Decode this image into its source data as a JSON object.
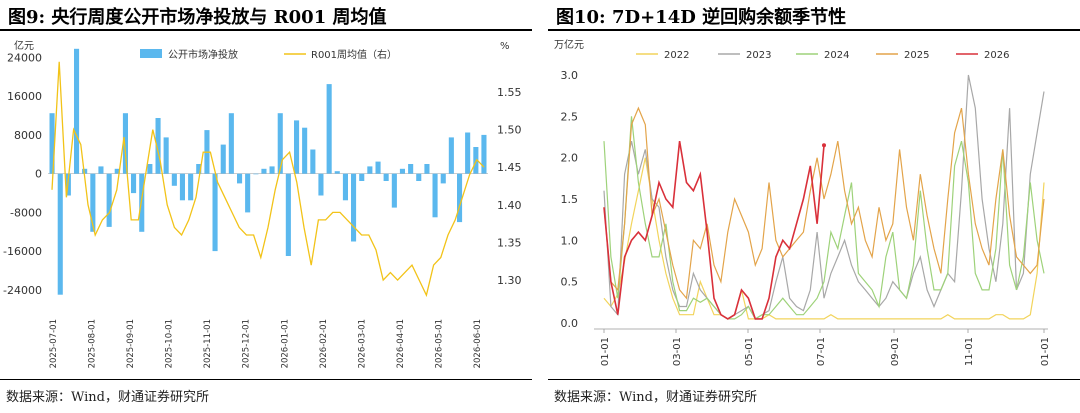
{
  "left": {
    "title": "图9: 央行周度公开市场净投放与 R001 周均值",
    "source": "数据来源：Wind，财通证券研究所",
    "chart_data": {
      "type": "bar+line",
      "y_left_unit": "亿元",
      "y_right_unit": "%",
      "y_left_ticks": [
        "24000",
        "16000",
        "8000",
        "0",
        "-8000",
        "-16000",
        "-24000"
      ],
      "y_left_range": [
        -29000,
        27000
      ],
      "y_right_ticks": [
        "1.55",
        "1.50",
        "1.45",
        "1.40",
        "1.35",
        "1.30"
      ],
      "y_right_range": [
        1.255,
        1.615
      ],
      "x_ticks": [
        "2025-07-01",
        "2025-08-01",
        "2025-09-01",
        "2025-10-01",
        "2025-11-01",
        "2025-12-01",
        "2026-01-01",
        "2026-02-01",
        "2026-03-01",
        "2026-04-01",
        "2026-05-01",
        "2026-06-01"
      ],
      "legend": [
        {
          "label": "公开市场净投放",
          "color": "#5BB8EE",
          "type": "bar"
        },
        {
          "label": "R001周均值（右）",
          "color": "#F2C318",
          "type": "line"
        }
      ],
      "series_bar": {
        "name": "公开市场净投放",
        "values": [
          12500,
          -25000,
          -4500,
          25800,
          1000,
          -12000,
          1500,
          -11000,
          1000,
          12500,
          -4000,
          -12000,
          2000,
          11500,
          7500,
          -2500,
          -5500,
          -5500,
          2000,
          9000,
          -16000,
          6000,
          12500,
          -2000,
          -8000,
          0,
          1000,
          1500,
          12500,
          -17000,
          11000,
          9500,
          5000,
          -4500,
          18500,
          500,
          -5500,
          -14000,
          -1500,
          1500,
          2500,
          -1500,
          -7000,
          1000,
          2000,
          -1500,
          2000,
          -9000,
          -2000,
          7500,
          -10000,
          8500,
          5500,
          8000
        ]
      },
      "series_line": {
        "name": "R001周均值（右）",
        "values": [
          1.42,
          1.59,
          1.41,
          1.5,
          1.48,
          1.4,
          1.36,
          1.38,
          1.39,
          1.42,
          1.49,
          1.38,
          1.38,
          1.44,
          1.5,
          1.46,
          1.4,
          1.37,
          1.36,
          1.38,
          1.41,
          1.47,
          1.47,
          1.43,
          1.41,
          1.39,
          1.37,
          1.36,
          1.36,
          1.33,
          1.37,
          1.42,
          1.46,
          1.47,
          1.43,
          1.37,
          1.32,
          1.38,
          1.38,
          1.39,
          1.39,
          1.38,
          1.37,
          1.36,
          1.36,
          1.34,
          1.3,
          1.31,
          1.3,
          1.31,
          1.32,
          1.3,
          1.28,
          1.32,
          1.33,
          1.36,
          1.38,
          1.41,
          1.44,
          1.46,
          1.45
        ]
      }
    }
  },
  "right": {
    "title": "图10: 7D+14D 逆回购余额季节性",
    "source": "数据来源：Wind，财通证券研究所",
    "chart_data": {
      "type": "line",
      "y_unit": "万亿元",
      "y_ticks": [
        "3.0",
        "2.5",
        "2.0",
        "1.5",
        "1.0",
        "0.5",
        "0.0"
      ],
      "ylim": [
        0,
        3.0
      ],
      "x_ticks": [
        "01-01",
        "03-01",
        "05-01",
        "07-01",
        "09-01",
        "11-01",
        "01-01"
      ],
      "series": [
        {
          "name": "2022",
          "color": "#F2D45C",
          "values": [
            0.3,
            0.2,
            0.35,
            0.75,
            1.2,
            1.6,
            2.0,
            1.5,
            1.0,
            0.6,
            0.3,
            0.1,
            0.1,
            0.1,
            0.5,
            0.3,
            0.1,
            0.1,
            0.05,
            0.1,
            0.4,
            0.05,
            0.05,
            0.05,
            0.1,
            0.05,
            0.05,
            0.05,
            0.05,
            0.05,
            0.05,
            0.05,
            0.05,
            0.1,
            0.05,
            0.05,
            0.05,
            0.05,
            0.05,
            0.05,
            0.05,
            0.05,
            0.05,
            0.05,
            0.05,
            0.05,
            0.05,
            0.05,
            0.05,
            0.05,
            0.1,
            0.05,
            0.05,
            0.05,
            0.05,
            0.05,
            0.05,
            0.1,
            0.1,
            0.05,
            0.05,
            0.05,
            0.1,
            0.6,
            1.7
          ]
        },
        {
          "name": "2023",
          "color": "#A8A8A8",
          "values": [
            1.6,
            0.2,
            0.1,
            1.8,
            2.2,
            1.8,
            2.1,
            1.5,
            1.4,
            0.8,
            0.4,
            0.2,
            0.2,
            0.6,
            0.4,
            0.3,
            0.2,
            0.1,
            0.05,
            0.1,
            0.15,
            0.2,
            0.05,
            0.1,
            0.15,
            0.5,
            0.8,
            0.3,
            0.2,
            0.15,
            0.4,
            1.1,
            0.3,
            0.6,
            0.8,
            1.0,
            0.7,
            0.5,
            0.4,
            0.3,
            0.2,
            0.3,
            0.5,
            0.4,
            0.3,
            0.6,
            0.8,
            0.4,
            0.2,
            0.4,
            0.6,
            0.5,
            1.6,
            3.0,
            2.6,
            1.5,
            0.9,
            0.5,
            1.2,
            2.6,
            0.4,
            0.6,
            1.8,
            2.3,
            2.8
          ]
        },
        {
          "name": "2024",
          "color": "#9ED27A",
          "values": [
            2.2,
            0.8,
            0.3,
            1.2,
            2.5,
            1.7,
            1.2,
            0.8,
            0.8,
            1.2,
            0.5,
            0.15,
            0.15,
            0.3,
            0.25,
            0.3,
            0.2,
            0.1,
            0.05,
            0.05,
            0.1,
            0.2,
            0.05,
            0.1,
            0.1,
            0.2,
            0.3,
            0.2,
            0.1,
            0.1,
            0.2,
            0.3,
            0.5,
            1.1,
            0.9,
            1.3,
            1.7,
            0.6,
            0.5,
            0.4,
            0.2,
            0.8,
            1.1,
            0.4,
            0.3,
            0.7,
            1.6,
            0.9,
            0.4,
            0.4,
            0.6,
            1.9,
            2.2,
            1.7,
            0.6,
            0.4,
            0.4,
            0.9,
            2.1,
            0.7,
            0.4,
            0.8,
            1.7,
            1.0,
            0.6
          ]
        },
        {
          "name": "2025",
          "color": "#E3A44A",
          "values": [
            1.4,
            0.5,
            0.4,
            1.2,
            2.4,
            2.6,
            2.4,
            1.3,
            1.5,
            1.1,
            0.7,
            0.4,
            0.3,
            1.0,
            0.9,
            1.2,
            0.7,
            0.5,
            1.1,
            1.5,
            1.3,
            1.1,
            0.7,
            0.9,
            1.7,
            1.0,
            0.8,
            0.9,
            1.0,
            1.1,
            1.6,
            2.0,
            1.5,
            1.8,
            2.2,
            1.6,
            1.2,
            1.4,
            1.0,
            0.8,
            1.4,
            1.0,
            1.2,
            2.1,
            1.4,
            1.0,
            1.8,
            1.3,
            0.9,
            0.6,
            1.5,
            2.3,
            2.6,
            1.8,
            1.2,
            0.9,
            0.7,
            1.5,
            2.1,
            1.3,
            0.8,
            0.7,
            0.6,
            0.7,
            1.5
          ]
        },
        {
          "name": "2026",
          "color": "#D9303A",
          "values": [
            1.4,
            0.5,
            0.1,
            0.8,
            1.0,
            1.1,
            1.0,
            1.3,
            1.7,
            1.5,
            1.4,
            2.2,
            1.7,
            1.6,
            1.8,
            1.1,
            0.3,
            0.1,
            0.05,
            0.1,
            0.4,
            0.3,
            0.05,
            0.05,
            0.3,
            0.8,
            1.0,
            0.9,
            1.2,
            1.5,
            1.9,
            1.2,
            2.15
          ]
        }
      ]
    }
  }
}
